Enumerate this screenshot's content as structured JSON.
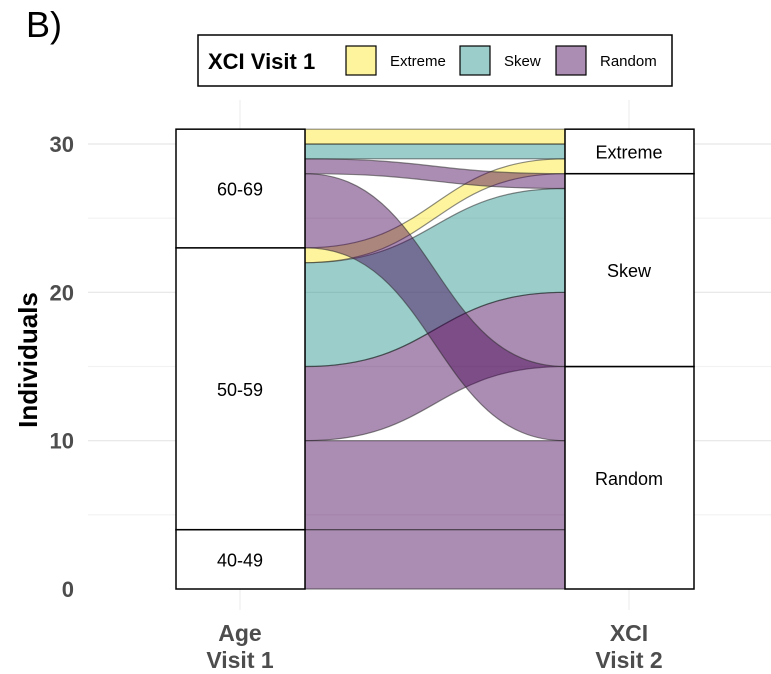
{
  "panel_label": "B)",
  "chart_data": {
    "type": "alluvial",
    "ylabel": "Individuals",
    "ylim": [
      0,
      31
    ],
    "yticks": [
      0,
      10,
      20,
      30
    ],
    "axes": [
      {
        "label_lines": [
          "Age",
          "Visit 1"
        ]
      },
      {
        "label_lines": [
          "XCI",
          "Visit 2"
        ]
      }
    ],
    "legend": {
      "title": "XCI Visit 1",
      "placement": "top",
      "entries": [
        {
          "name": "Extreme",
          "color": "#fde725"
        },
        {
          "name": "Skew",
          "color": "#21908c"
        },
        {
          "name": "Random",
          "color": "#440154"
        }
      ]
    },
    "strata": {
      "left": [
        {
          "label": "40-49",
          "from": 0,
          "to": 4
        },
        {
          "label": "50-59",
          "from": 4,
          "to": 23
        },
        {
          "label": "60-69",
          "from": 23,
          "to": 31
        }
      ],
      "right": [
        {
          "label": "Random",
          "from": 0,
          "to": 15
        },
        {
          "label": "Skew",
          "from": 15,
          "to": 28
        },
        {
          "label": "Extreme",
          "from": 28,
          "to": 31
        }
      ]
    },
    "flows": [
      {
        "age": "40-49",
        "visit1": "Random",
        "visit2": "Random",
        "count": 4,
        "l": [
          0,
          4
        ],
        "r": [
          0,
          4
        ]
      },
      {
        "age": "50-59",
        "visit1": "Random",
        "visit2": "Random",
        "count": 6,
        "l": [
          4,
          10
        ],
        "r": [
          4,
          10
        ]
      },
      {
        "age": "50-59",
        "visit1": "Random",
        "visit2": "Skew",
        "count": 5,
        "l": [
          10,
          15
        ],
        "r": [
          15,
          20
        ]
      },
      {
        "age": "50-59",
        "visit1": "Skew",
        "visit2": "Skew",
        "count": 7,
        "l": [
          15,
          22
        ],
        "r": [
          20,
          27
        ]
      },
      {
        "age": "50-59",
        "visit1": "Extreme",
        "visit2": "Extreme",
        "count": 1,
        "l": [
          22,
          23
        ],
        "r": [
          28,
          29
        ]
      },
      {
        "age": "60-69",
        "visit1": "Random",
        "visit2": "Random",
        "count": 5,
        "l": [
          23,
          28
        ],
        "r": [
          10,
          15
        ]
      },
      {
        "age": "60-69",
        "visit1": "Random",
        "visit2": "Skew",
        "count": 1,
        "l": [
          28,
          29
        ],
        "r": [
          27,
          28
        ]
      },
      {
        "age": "60-69",
        "visit1": "Skew",
        "visit2": "Extreme",
        "count": 1,
        "l": [
          29,
          30
        ],
        "r": [
          29,
          30
        ]
      },
      {
        "age": "60-69",
        "visit1": "Extreme",
        "visit2": "Extreme",
        "count": 1,
        "l": [
          30,
          31
        ],
        "r": [
          30,
          31
        ]
      }
    ]
  }
}
